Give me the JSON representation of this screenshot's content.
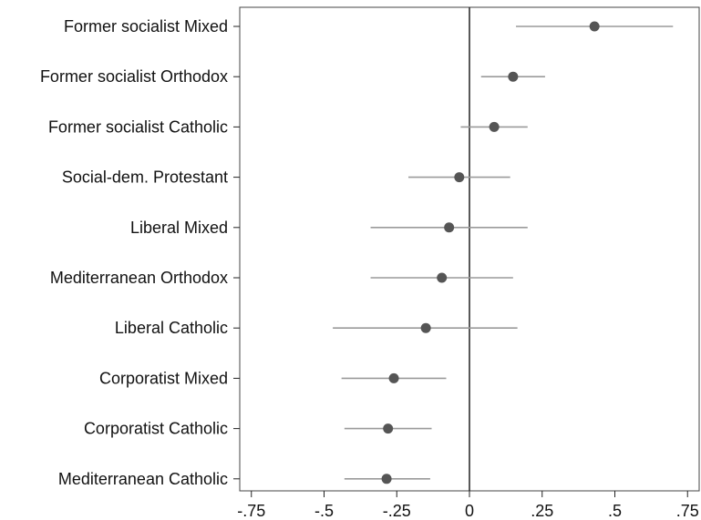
{
  "chart_data": {
    "type": "scatter",
    "title": "",
    "xlabel": "",
    "ylabel": "",
    "xlim": [
      -0.79,
      0.79
    ],
    "x_ticks": [
      -0.75,
      -0.5,
      -0.25,
      0,
      0.25,
      0.5,
      0.75
    ],
    "x_tick_labels": [
      "-.75",
      "-.5",
      "-.25",
      "0",
      ".25",
      ".5",
      ".75"
    ],
    "reference_line_x": 0,
    "grid": false,
    "legend": "none",
    "colors": {
      "point": "#555555",
      "interval": "#9a9a9a",
      "axis": "#222222",
      "frame": "#444444"
    },
    "series": [
      {
        "points": [
          {
            "category": "Former socialist Mixed",
            "estimate": 0.43,
            "lower": 0.16,
            "upper": 0.7
          },
          {
            "category": "Former socialist Orthodox",
            "estimate": 0.15,
            "lower": 0.04,
            "upper": 0.26
          },
          {
            "category": "Former socialist Catholic",
            "estimate": 0.085,
            "lower": -0.03,
            "upper": 0.2
          },
          {
            "category": "Social-dem. Protestant",
            "estimate": -0.035,
            "lower": -0.21,
            "upper": 0.14
          },
          {
            "category": "Liberal Mixed",
            "estimate": -0.07,
            "lower": -0.34,
            "upper": 0.2
          },
          {
            "category": "Mediterranean Orthodox",
            "estimate": -0.095,
            "lower": -0.34,
            "upper": 0.15
          },
          {
            "category": "Liberal Catholic",
            "estimate": -0.15,
            "lower": -0.47,
            "upper": 0.165
          },
          {
            "category": "Corporatist Mixed",
            "estimate": -0.26,
            "lower": -0.44,
            "upper": -0.08
          },
          {
            "category": "Corporatist Catholic",
            "estimate": -0.28,
            "lower": -0.43,
            "upper": -0.13
          },
          {
            "category": "Mediterranean Catholic",
            "estimate": -0.285,
            "lower": -0.43,
            "upper": -0.135
          }
        ]
      }
    ]
  }
}
